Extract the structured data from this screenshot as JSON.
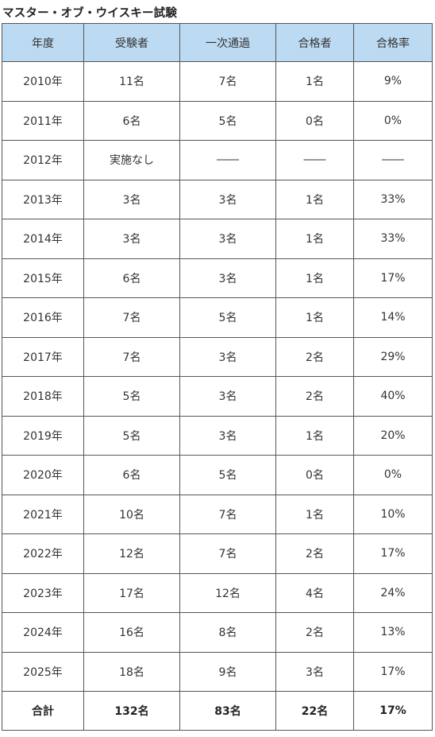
{
  "title": "マスター・オブ・ウイスキー試験",
  "headers": [
    "年度",
    "受験者",
    "一次通過",
    "合格者",
    "合格率"
  ],
  "rows": [
    [
      "2010年",
      "11名",
      "7名",
      "1名",
      "9%"
    ],
    [
      "2011年",
      "6名",
      "5名",
      "0名",
      "0%"
    ],
    [
      "2012年",
      "実施なし",
      "――",
      "――",
      "――"
    ],
    [
      "2013年",
      "3名",
      "3名",
      "1名",
      "33%"
    ],
    [
      "2014年",
      "3名",
      "3名",
      "1名",
      "33%"
    ],
    [
      "2015年",
      "6名",
      "3名",
      "1名",
      "17%"
    ],
    [
      "2016年",
      "7名",
      "5名",
      "1名",
      "14%"
    ],
    [
      "2017年",
      "7名",
      "3名",
      "2名",
      "29%"
    ],
    [
      "2018年",
      "5名",
      "3名",
      "2名",
      "40%"
    ],
    [
      "2019年",
      "5名",
      "3名",
      "1名",
      "20%"
    ],
    [
      "2020年",
      "6名",
      "5名",
      "0名",
      "0%"
    ],
    [
      "2021年",
      "10名",
      "7名",
      "1名",
      "10%"
    ],
    [
      "2022年",
      "12名",
      "7名",
      "2名",
      "17%"
    ],
    [
      "2023年",
      "17名",
      "12名",
      "4名",
      "24%"
    ],
    [
      "2024年",
      "16名",
      "8名",
      "2名",
      "13%"
    ],
    [
      "2025年",
      "18名",
      "9名",
      "3名",
      "17%"
    ]
  ],
  "total": [
    "合計",
    "132名",
    "83名",
    "22名",
    "17%"
  ],
  "colors": {
    "header_bg": "#bcdaf2",
    "border": "#555555",
    "text": "#333333"
  }
}
